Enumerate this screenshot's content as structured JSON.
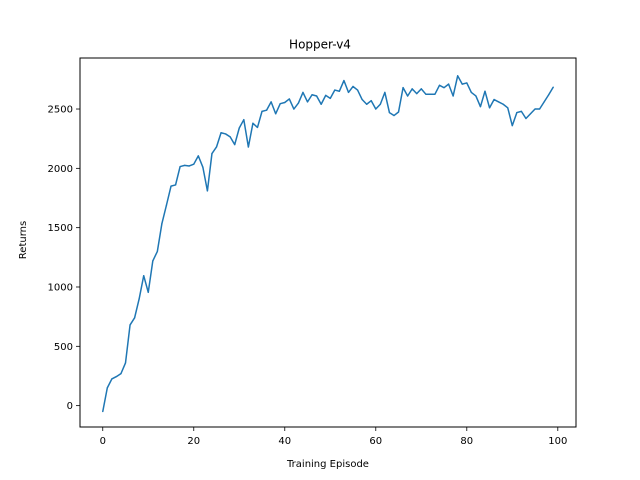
{
  "chart_data": {
    "type": "line",
    "title": "Hopper-v4",
    "xlabel": "Training Episode",
    "ylabel": "Returns",
    "xlim": [
      -5,
      104
    ],
    "ylim": [
      -180,
      2930
    ],
    "xticks": [
      0,
      20,
      40,
      60,
      80,
      100
    ],
    "yticks": [
      0,
      500,
      1000,
      1500,
      2000,
      2500
    ],
    "grid": false,
    "line_color": "#1f77b4",
    "series": [
      {
        "x": [
          0,
          1,
          2,
          3,
          4,
          5,
          6,
          7,
          8,
          9,
          10,
          11,
          12,
          13,
          14,
          15,
          16,
          17,
          18,
          19,
          20,
          21,
          22,
          23,
          24,
          25,
          26,
          27,
          28,
          29,
          30,
          31,
          32,
          33,
          34,
          35,
          36,
          37,
          38,
          39,
          40,
          41,
          42,
          43,
          44,
          45,
          46,
          47,
          48,
          49,
          50,
          51,
          52,
          53,
          54,
          55,
          56,
          57,
          58,
          59,
          60,
          61,
          62,
          63,
          64,
          65,
          66,
          67,
          68,
          69,
          70,
          71,
          72,
          73,
          74,
          75,
          76,
          77,
          78,
          79,
          80,
          81,
          82,
          83,
          84,
          85,
          86,
          87,
          88,
          89,
          90,
          91,
          92,
          93,
          94,
          95,
          96,
          97,
          98,
          99
        ],
        "values": [
          -50,
          150,
          225,
          245,
          270,
          360,
          680,
          740,
          900,
          1095,
          955,
          1220,
          1300,
          1535,
          1690,
          1850,
          1860,
          2015,
          2025,
          2020,
          2035,
          2105,
          2010,
          1810,
          2125,
          2180,
          2300,
          2290,
          2265,
          2200,
          2340,
          2410,
          2180,
          2380,
          2345,
          2480,
          2490,
          2560,
          2460,
          2545,
          2555,
          2585,
          2500,
          2550,
          2640,
          2560,
          2620,
          2610,
          2540,
          2615,
          2590,
          2660,
          2650,
          2740,
          2640,
          2690,
          2660,
          2580,
          2540,
          2570,
          2500,
          2540,
          2640,
          2470,
          2445,
          2475,
          2680,
          2610,
          2670,
          2630,
          2670,
          2625,
          2625,
          2625,
          2700,
          2680,
          2710,
          2610,
          2780,
          2710,
          2720,
          2640,
          2610,
          2520,
          2650,
          2510,
          2580,
          2560,
          2540,
          2510,
          2360,
          2470,
          2480,
          2420,
          2460,
          2500,
          2500,
          2560,
          2620,
          2685
        ]
      }
    ]
  }
}
